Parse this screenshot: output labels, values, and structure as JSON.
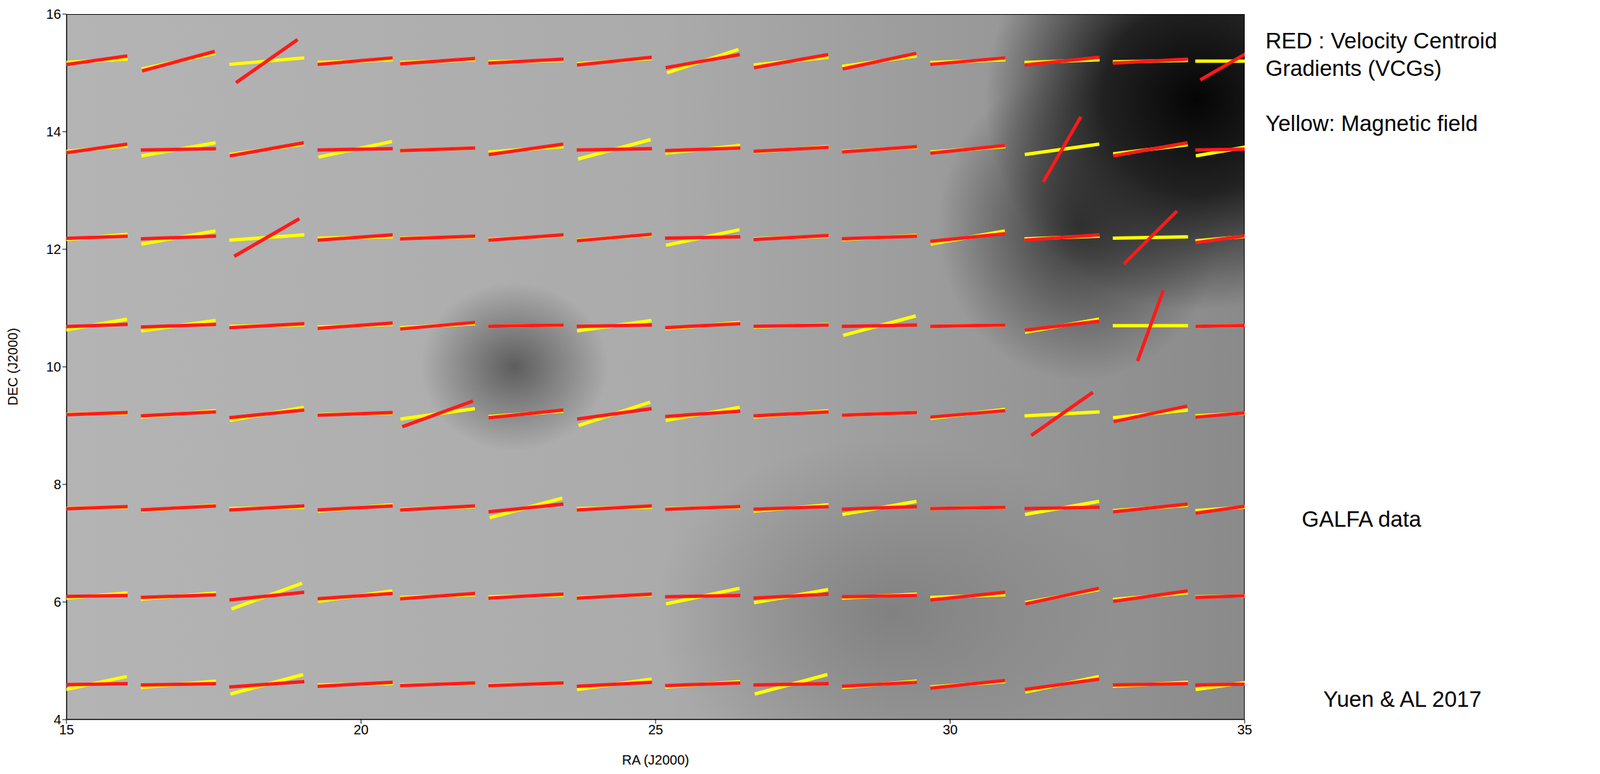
{
  "chart_data": {
    "type": "scatter",
    "x_label": "RA (J2000)",
    "y_label": "DEC (J2000)",
    "xlim": [
      15,
      35
    ],
    "xticks": [
      15,
      20,
      25,
      30,
      35
    ],
    "ylim": [
      4,
      16
    ],
    "yticks": [
      4,
      6,
      8,
      10,
      12,
      14,
      16
    ],
    "marker": "segment",
    "x": [
      15.4,
      16.9,
      18.4,
      19.9,
      21.3,
      22.8,
      24.3,
      25.8,
      27.3,
      28.8,
      30.3,
      31.9,
      33.4,
      34.8
    ],
    "y": [
      15.2,
      13.7,
      12.2,
      10.7,
      9.2,
      7.6,
      6.1,
      4.6
    ],
    "series": [
      {
        "name": "Yellow: Magnetic field",
        "color": "#ffff00",
        "values": [
          [
            3,
            12,
            5,
            2,
            2,
            1,
            4,
            18,
            6,
            8,
            2,
            2,
            1,
            0
          ],
          [
            5,
            10,
            8,
            12,
            2,
            4,
            15,
            6,
            4,
            3,
            4,
            8,
            7,
            10
          ],
          [
            5,
            10,
            4,
            1,
            1,
            3,
            4,
            12,
            2,
            3,
            10,
            2,
            1,
            5
          ],
          [
            10,
            8,
            1,
            2,
            3,
            1,
            8,
            5,
            2,
            15,
            1,
            10,
            0,
            1
          ],
          [
            1,
            5,
            10,
            1,
            8,
            4,
            18,
            10,
            5,
            2,
            7,
            3,
            6,
            3
          ],
          [
            1,
            4,
            1,
            5,
            2,
            15,
            1,
            1,
            5,
            10,
            1,
            10,
            4,
            4
          ],
          [
            5,
            5,
            20,
            8,
            2,
            1,
            2,
            12,
            10,
            3,
            2,
            10,
            5,
            1
          ],
          [
            12,
            5,
            15,
            1,
            1,
            1,
            8,
            4,
            15,
            5,
            4,
            12,
            3,
            8
          ]
        ]
      },
      {
        "name": "RED : Velocity Centroid Gradients (VCGs)",
        "color": "#ff1a1a",
        "values": [
          [
            8,
            15,
            35,
            5,
            4,
            3,
            6,
            10,
            10,
            12,
            5,
            6,
            3,
            30
          ],
          [
            8,
            1,
            10,
            1,
            2,
            8,
            1,
            2,
            3,
            4,
            6,
            60,
            10,
            1
          ],
          [
            2,
            2,
            30,
            4,
            2,
            4,
            5,
            1,
            3,
            2,
            6,
            4,
            45,
            8
          ],
          [
            2,
            2,
            3,
            4,
            5,
            1,
            1,
            3,
            1,
            1,
            1,
            7,
            70,
            1
          ],
          [
            2,
            3,
            6,
            2,
            20,
            6,
            8,
            4,
            3,
            2,
            5,
            35,
            12,
            5
          ],
          [
            2,
            3,
            3,
            3,
            3,
            6,
            3,
            2,
            2,
            2,
            1,
            1,
            6,
            8
          ],
          [
            1,
            2,
            6,
            4,
            4,
            3,
            3,
            1,
            3,
            1,
            6,
            12,
            8,
            2
          ],
          [
            1,
            1,
            4,
            3,
            2,
            2,
            3,
            2,
            1,
            3,
            6,
            8,
            1,
            1
          ]
        ]
      }
    ],
    "annotations": [
      "GALFA data",
      "Yuen & AL 2017"
    ]
  }
}
